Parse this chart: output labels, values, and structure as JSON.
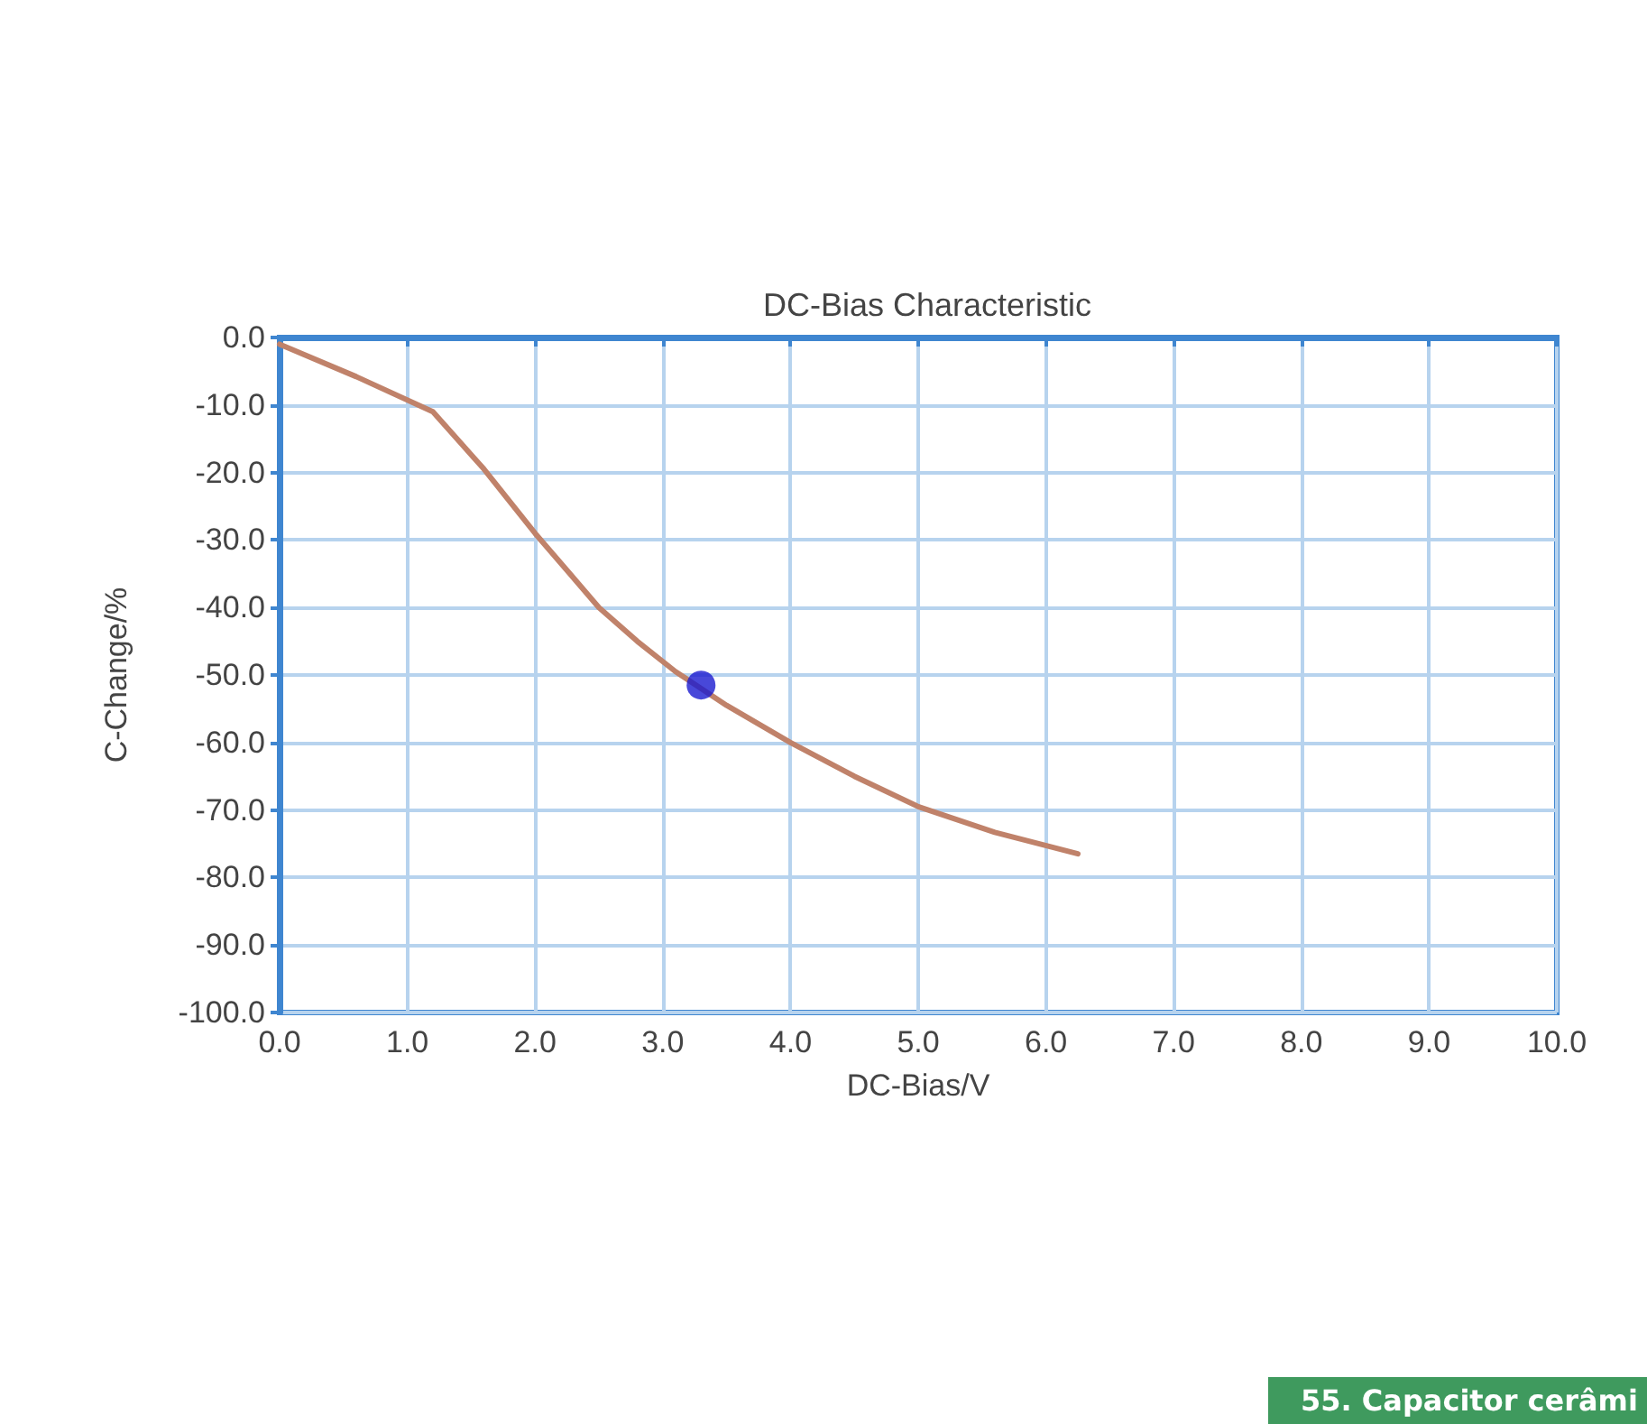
{
  "chart_data": {
    "type": "line",
    "title": "DC-Bias Characteristic",
    "xlabel": "DC-Bias/V",
    "ylabel": "C-Change/%",
    "xlim": [
      0,
      10
    ],
    "ylim": [
      -100,
      0
    ],
    "xticks": [
      {
        "value": 0,
        "label": "0.0"
      },
      {
        "value": 1,
        "label": "1.0"
      },
      {
        "value": 2,
        "label": "2.0"
      },
      {
        "value": 3,
        "label": "3.0"
      },
      {
        "value": 4,
        "label": "4.0"
      },
      {
        "value": 5,
        "label": "5.0"
      },
      {
        "value": 6,
        "label": "6.0"
      },
      {
        "value": 7,
        "label": "7.0"
      },
      {
        "value": 8,
        "label": "8.0"
      },
      {
        "value": 9,
        "label": "9.0"
      },
      {
        "value": 10,
        "label": "10.0"
      }
    ],
    "yticks": [
      {
        "value": 0,
        "label": "0.0"
      },
      {
        "value": -10,
        "label": "-10.0"
      },
      {
        "value": -20,
        "label": "-20.0"
      },
      {
        "value": -30,
        "label": "-30.0"
      },
      {
        "value": -40,
        "label": "-40.0"
      },
      {
        "value": -50,
        "label": "-50.0"
      },
      {
        "value": -60,
        "label": "-60.0"
      },
      {
        "value": -70,
        "label": "-70.0"
      },
      {
        "value": -80,
        "label": "-80.0"
      },
      {
        "value": -90,
        "label": "-90.0"
      },
      {
        "value": -100,
        "label": "-100.0"
      }
    ],
    "grid": true,
    "line_style": "solid",
    "series": [
      {
        "color": "#c0826a",
        "x": [
          0,
          0.6,
          1.2,
          1.6,
          2.0,
          2.25,
          2.5,
          2.8,
          3.1,
          3.5,
          4.0,
          4.5,
          5.0,
          5.6,
          6.25
        ],
        "values": [
          -1,
          -5.8,
          -11,
          -19.5,
          -29,
          -34.5,
          -40,
          -45,
          -49.5,
          -54.5,
          -60,
          -65,
          -69.5,
          -73.3,
          -76.5
        ]
      },
      {
        "type": "scatter",
        "color": "#1a1ad0",
        "x": [
          3.3
        ],
        "values": [
          -51.5
        ]
      }
    ],
    "annotations": [
      "55. Capacitor cerâmi"
    ]
  }
}
